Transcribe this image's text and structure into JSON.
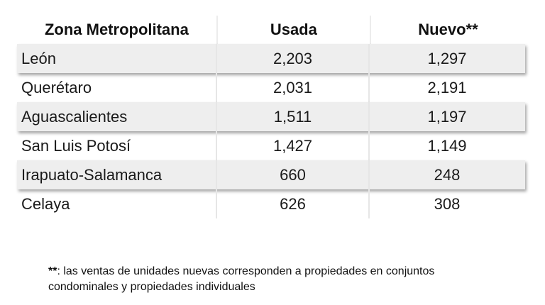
{
  "table": {
    "headers": {
      "zone": "Zona Metropolitana",
      "used": "Usada",
      "new": "Nuevo**"
    },
    "rows": [
      {
        "zone": "León",
        "used": "2,203",
        "new": "1,297"
      },
      {
        "zone": "Querétaro",
        "used": "2,031",
        "new": "2,191"
      },
      {
        "zone": "Aguascalientes",
        "used": "1,511",
        "new": "1,197"
      },
      {
        "zone": "San Luis Potosí",
        "used": "1,427",
        "new": "1,149"
      },
      {
        "zone": "Irapuato-Salamanca",
        "used": "660",
        "new": "248"
      },
      {
        "zone": "Celaya",
        "used": "626",
        "new": "308"
      }
    ]
  },
  "footnote": {
    "mark": "**",
    "text": ": las ventas de unidades nuevas corresponden a propiedades en conjuntos condominales y propiedades individuales"
  },
  "colors": {
    "row_shade": "#eeeeee",
    "text": "#1a1a1a"
  }
}
